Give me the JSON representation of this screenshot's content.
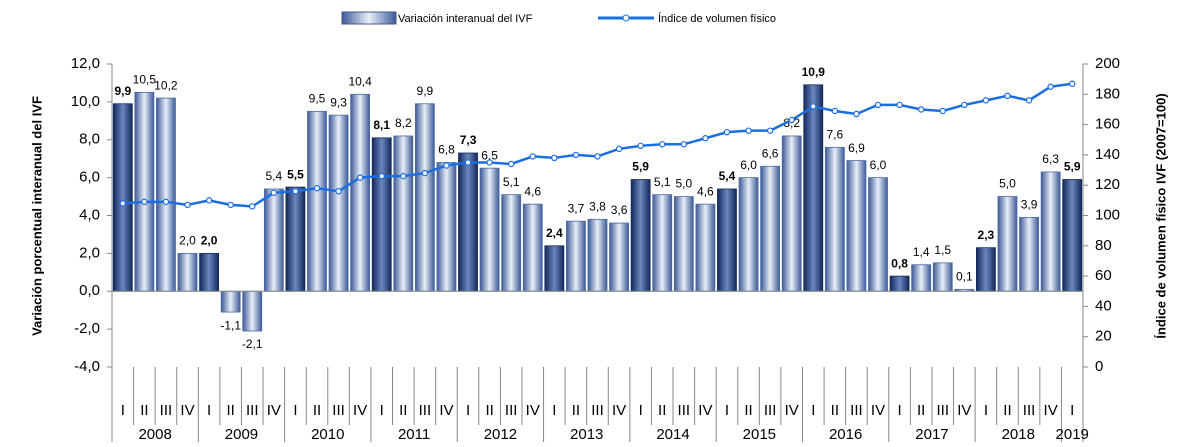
{
  "chart_data": {
    "type": "bar-line",
    "series": [
      {
        "name": "Variación interanual del IVF",
        "color": "#4a6aa8",
        "axis": "y",
        "values": [
          9.9,
          10.5,
          10.2,
          2.0,
          2.0,
          -1.1,
          -2.1,
          5.4,
          5.5,
          9.5,
          9.3,
          10.4,
          8.1,
          8.2,
          9.9,
          6.8,
          7.3,
          6.5,
          5.1,
          4.6,
          2.4,
          3.7,
          3.8,
          3.6,
          5.9,
          5.1,
          5.0,
          4.6,
          5.4,
          6.0,
          6.6,
          8.2,
          10.9,
          7.6,
          6.9,
          6.0,
          0.8,
          1.4,
          1.5,
          0.1,
          2.3,
          5.0,
          3.9,
          6.3,
          5.9
        ],
        "value_labels": [
          "9,9",
          "10,5",
          "10,2",
          "2,0",
          "2,0",
          "-1,1",
          "-2,1",
          "5,4",
          "5,5",
          "9,5",
          "9,3",
          "10,4",
          "8,1",
          "8,2",
          "9,9",
          "6,8",
          "7,3",
          "6,5",
          "5,1",
          "4,6",
          "2,4",
          "3,7",
          "3,8",
          "3,6",
          "5,9",
          "5,1",
          "5,0",
          "4,6",
          "5,4",
          "6,0",
          "6,6",
          "8,2",
          "10,9",
          "7,6",
          "6,9",
          "6,0",
          "0,8",
          "1,4",
          "1,5",
          "0,1",
          "2,3",
          "5,0",
          "3,9",
          "6,3",
          "5,9"
        ]
      },
      {
        "name": "Índice de volumen físico",
        "color": "#1a6ee0",
        "axis": "y2",
        "values": [
          108,
          109,
          109,
          107,
          110,
          107,
          106,
          115,
          116,
          118,
          116,
          125,
          126,
          126,
          128,
          133,
          135,
          135,
          134,
          139,
          138,
          140,
          139,
          144,
          146,
          147,
          147,
          151,
          155,
          156,
          156,
          163,
          172,
          169,
          167,
          173,
          173,
          170,
          169,
          173,
          176,
          179,
          176,
          185,
          187
        ]
      }
    ],
    "categories": [
      "I",
      "II",
      "III",
      "IV",
      "I",
      "II",
      "III",
      "IV",
      "I",
      "II",
      "III",
      "IV",
      "I",
      "II",
      "III",
      "IV",
      "I",
      "II",
      "III",
      "IV",
      "I",
      "II",
      "III",
      "IV",
      "I",
      "II",
      "III",
      "IV",
      "I",
      "II",
      "III",
      "IV",
      "I",
      "II",
      "III",
      "IV",
      "I",
      "II",
      "III",
      "IV",
      "I",
      "II",
      "III",
      "IV",
      "I"
    ],
    "years": [
      "2008",
      "2009",
      "2010",
      "2011",
      "2012",
      "2013",
      "2014",
      "2015",
      "2016",
      "2017",
      "2018",
      "2019"
    ],
    "ylabel": "Variación porcentual interanual del IVF",
    "y2label": "Índice de volumen físico IVF (2007=100)",
    "ylim": [
      -4,
      12
    ],
    "yticks": [
      {
        "value": -4,
        "label": "-4,0"
      },
      {
        "value": -2,
        "label": "-2,0"
      },
      {
        "value": 0,
        "label": "0,0"
      },
      {
        "value": 2,
        "label": "2,0"
      },
      {
        "value": 4,
        "label": "4,0"
      },
      {
        "value": 6,
        "label": "6,0"
      },
      {
        "value": 8,
        "label": "8,0"
      },
      {
        "value": 10,
        "label": "10,0"
      },
      {
        "value": 12,
        "label": "12,0"
      }
    ],
    "y2lim": [
      0,
      200
    ],
    "y2ticks": [
      0,
      20,
      40,
      60,
      80,
      100,
      120,
      140,
      160,
      180,
      200
    ],
    "legend": "top"
  }
}
